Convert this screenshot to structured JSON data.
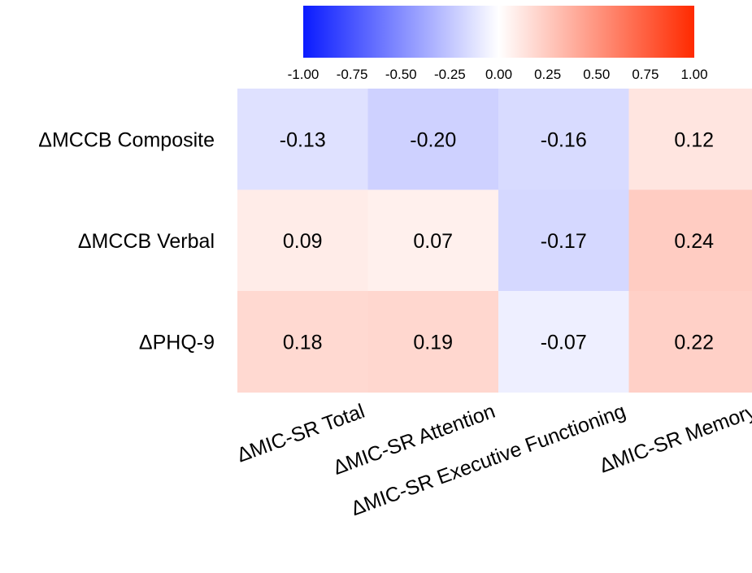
{
  "chart_data": {
    "type": "heatmap",
    "rows": [
      "ΔMCCB Composite",
      "ΔMCCB Verbal",
      "ΔPHQ-9"
    ],
    "columns": [
      "ΔMIC-SR Total",
      "ΔMIC-SR Attention",
      "ΔMIC-SR Executive Functioning",
      "ΔMIC-SR Memory"
    ],
    "values": [
      [
        -0.13,
        -0.2,
        -0.16,
        0.12
      ],
      [
        0.09,
        0.07,
        -0.17,
        0.24
      ],
      [
        0.18,
        0.19,
        -0.07,
        0.22
      ]
    ],
    "value_labels": [
      [
        "-0.13",
        "-0.20",
        "-0.16",
        "0.12"
      ],
      [
        "0.09",
        "0.07",
        "-0.17",
        "0.24"
      ],
      [
        "0.18",
        "0.19",
        "-0.07",
        "0.22"
      ]
    ],
    "color_scale": {
      "range": [
        -1,
        1
      ],
      "low_color": "#0a1bff",
      "mid_color": "#ffffff",
      "high_color": "#ff2a00",
      "ticks": [
        "-1.00",
        "-0.75",
        "-0.50",
        "-0.25",
        "0.00",
        "0.25",
        "0.50",
        "0.75",
        "1.00"
      ],
      "placement": "top"
    }
  }
}
